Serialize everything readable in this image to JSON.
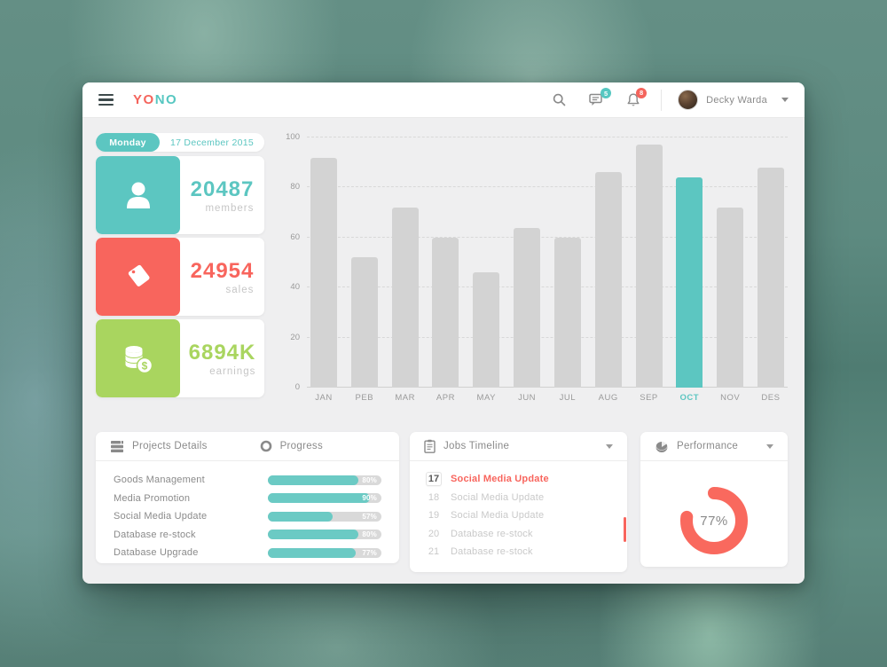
{
  "topbar": {
    "logo_part1": "YO",
    "logo_part2": "NO",
    "messages_badge": "5",
    "notifications_badge": "8",
    "user_name": "Decky Warda"
  },
  "date": {
    "day": "Monday",
    "full": "17 December 2015"
  },
  "stats": [
    {
      "value": "20487",
      "label": "members"
    },
    {
      "value": "24954",
      "label": "sales"
    },
    {
      "value": "6894K",
      "label": "earnings"
    }
  ],
  "chart_data": {
    "type": "bar",
    "categories": [
      "JAN",
      "PEB",
      "MAR",
      "APR",
      "MAY",
      "JUN",
      "JUL",
      "AUG",
      "SEP",
      "OCT",
      "NOV",
      "DES"
    ],
    "values": [
      92,
      52,
      72,
      60,
      46,
      64,
      60,
      86,
      97,
      84,
      72,
      88
    ],
    "highlighted_category": "OCT",
    "yticks": [
      100,
      80,
      60,
      40,
      20,
      0
    ],
    "ylim": [
      0,
      100
    ],
    "title": "",
    "xlabel": "",
    "ylabel": "",
    "grid": true,
    "legend": false,
    "bar_color": "#d3d3d3",
    "highlight_color": "#5cc6c1"
  },
  "projects": {
    "title": "Projects Details",
    "progress_title": "Progress",
    "rows": [
      {
        "label": "Goods Management",
        "percent": 80
      },
      {
        "label": "Media Promotion",
        "percent": 90
      },
      {
        "label": "Social Media Update",
        "percent": 57
      },
      {
        "label": "Database re-stock",
        "percent": 80
      },
      {
        "label": "Database Upgrade",
        "percent": 77
      }
    ]
  },
  "jobs": {
    "title": "Jobs Timeline",
    "items": [
      {
        "day": "17",
        "label": "Social Media Update",
        "active": true
      },
      {
        "day": "18",
        "label": "Social Media Update",
        "active": false
      },
      {
        "day": "19",
        "label": "Social Media Update",
        "active": false
      },
      {
        "day": "20",
        "label": "Database re-stock",
        "active": false
      },
      {
        "day": "21",
        "label": "Database re-stock",
        "active": false
      }
    ]
  },
  "performance": {
    "title": "Performance",
    "percent": 77,
    "label": "77%",
    "arc_color": "#f9695e"
  }
}
